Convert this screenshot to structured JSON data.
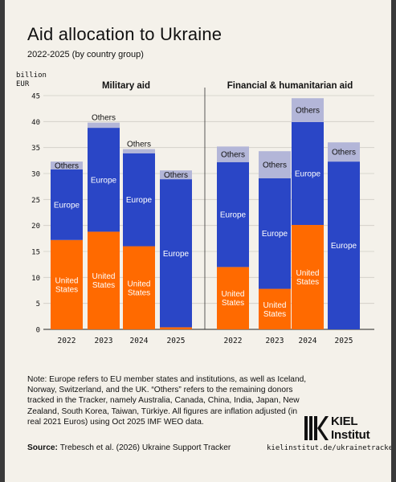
{
  "header": {
    "title": "Aid allocation to Ukraine",
    "subtitle": "2022-2025 (by country group)"
  },
  "footer": {
    "note": "Note: Europe refers to EU member states and institutions, as well as Iceland, Norway, Switzerland, and the UK. “Others” refers to the remaining donors tracked in the Tracker, namely Australia, Canada, China, India, Japan, New Zealand, South Korea, Taiwan, Türkiye. All figures are inflation adjusted (in real 2021 Euros) using Oct 2025 IMF WEO data.",
    "source_label": "Source:",
    "source_text": "Trebesch et al. (2026) Ukraine Support Tracker",
    "url": "kielinstitut.de/ukrainetracker",
    "logo_line1": "KIEL",
    "logo_line2": "Institut"
  },
  "colors": {
    "United States": "#ff6a00",
    "Europe": "#2a46c6",
    "Others": "#b3b6d8"
  },
  "chart_data": {
    "type": "bar",
    "stacked": true,
    "unit_label": [
      "billion",
      "EUR"
    ],
    "ylim": [
      0,
      45
    ],
    "yticks": [
      0,
      5,
      10,
      15,
      20,
      25,
      30,
      35,
      40,
      45
    ],
    "grid": true,
    "panels": [
      {
        "title": "Military aid",
        "categories": [
          "2022",
          "2023",
          "2024",
          "2025"
        ],
        "series": [
          {
            "name": "United States",
            "values": [
              17.2,
              18.8,
              16.0,
              0.4
            ]
          },
          {
            "name": "Europe",
            "values": [
              13.6,
              20.0,
              17.9,
              28.5
            ]
          },
          {
            "name": "Others",
            "values": [
              1.5,
              1.0,
              0.8,
              1.7
            ]
          }
        ]
      },
      {
        "title": "Financial & humanitarian aid",
        "categories": [
          "2022",
          "2023",
          "2024",
          "2025"
        ],
        "series": [
          {
            "name": "United States",
            "values": [
              12.0,
              7.8,
              20.1,
              0.0
            ]
          },
          {
            "name": "Europe",
            "values": [
              20.2,
              21.3,
              19.8,
              32.3
            ]
          },
          {
            "name": "Others",
            "values": [
              3.0,
              5.2,
              4.6,
              3.7
            ]
          }
        ]
      }
    ]
  }
}
